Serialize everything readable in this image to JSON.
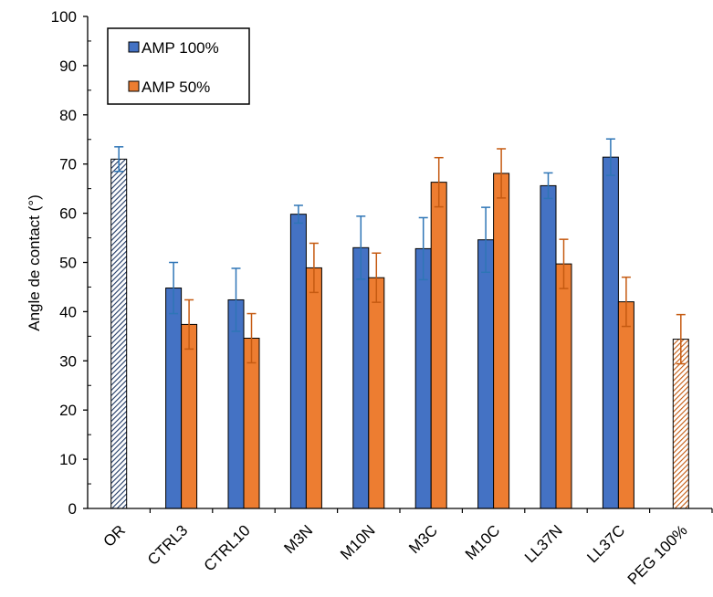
{
  "chart_data": {
    "type": "bar",
    "title": "",
    "xlabel": "",
    "ylabel": "Angle de contact (°)",
    "ylim": [
      0,
      100
    ],
    "ytick_step": 10,
    "grid": false,
    "legend_position": "top-left",
    "categories": [
      "OR",
      "CTRL3",
      "CTRL10",
      "M3N",
      "M10N",
      "M3C",
      "M10C",
      "LL37N",
      "LL37C",
      "PEG 100%"
    ],
    "series": [
      {
        "name": "AMP 100%",
        "color": "#4472C4",
        "error_color": "#2E75B6",
        "values": [
          71.0,
          44.8,
          42.4,
          59.8,
          53.0,
          52.8,
          54.6,
          65.6,
          71.4,
          null
        ],
        "errors": [
          2.5,
          5.2,
          6.4,
          1.8,
          6.4,
          6.3,
          6.6,
          2.6,
          3.7,
          null
        ]
      },
      {
        "name": "AMP 50%",
        "color": "#ED7D31",
        "error_color": "#C55A11",
        "values": [
          null,
          37.4,
          34.6,
          48.9,
          46.9,
          66.3,
          68.1,
          49.7,
          42.0,
          34.4
        ],
        "errors": [
          null,
          5.0,
          5.0,
          5.0,
          5.0,
          5.0,
          5.0,
          5.0,
          5.0,
          5.0
        ]
      }
    ],
    "hatched_bars": [
      {
        "category": "OR",
        "series": "AMP 100%"
      },
      {
        "category": "PEG 100%",
        "series": "AMP 50%"
      }
    ]
  }
}
